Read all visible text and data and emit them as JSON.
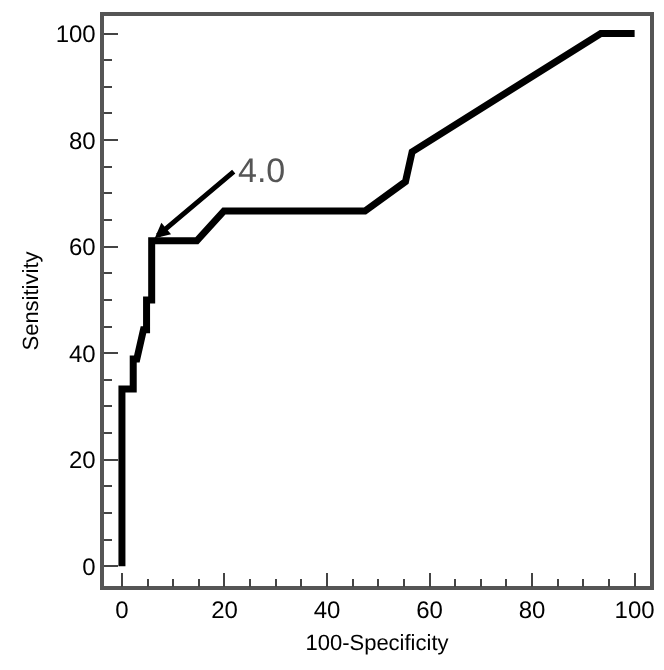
{
  "chart_data": {
    "type": "line",
    "xlabel": "100-Specificity",
    "ylabel": "Sensitivity",
    "x": [
      0,
      0,
      2.2,
      2.2,
      2.9,
      4.2,
      4.8,
      4.8,
      5.8,
      5.8,
      14.6,
      19.9,
      47.4,
      55.3,
      56.6,
      93.4,
      100
    ],
    "series": [
      {
        "color": "#000000",
        "values": [
          0,
          33.3,
          33.3,
          38.9,
          38.9,
          44.4,
          44.4,
          50,
          50,
          61.1,
          61.1,
          66.7,
          66.7,
          72.2,
          77.8,
          100,
          100
        ]
      }
    ],
    "annotations": [
      {
        "text": "4.0",
        "x": 5.8,
        "y": 61.1
      }
    ],
    "xlim": [
      -3.5,
      103
    ],
    "ylim": [
      -3.7,
      103.3
    ],
    "xticks": [
      0,
      {
        "value": 5,
        "label": null
      },
      {
        "value": 10,
        "label": null
      },
      {
        "value": 15,
        "label": null
      },
      20,
      {
        "value": 25,
        "label": null
      },
      {
        "value": 30,
        "label": null
      },
      {
        "value": 35,
        "label": null
      },
      40,
      {
        "value": 45,
        "label": null
      },
      {
        "value": 50,
        "label": null
      },
      {
        "value": 55,
        "label": null
      },
      60,
      {
        "value": 65,
        "label": null
      },
      {
        "value": 70,
        "label": null
      },
      {
        "value": 75,
        "label": null
      },
      80,
      {
        "value": 85,
        "label": null
      },
      {
        "value": 90,
        "label": null
      },
      {
        "value": 95,
        "label": null
      },
      100
    ],
    "yticks": [
      0,
      {
        "value": 5,
        "label": null
      },
      {
        "value": 10,
        "label": null
      },
      {
        "value": 15,
        "label": null
      },
      20,
      {
        "value": 25,
        "label": null
      },
      {
        "value": 30,
        "label": null
      },
      {
        "value": 35,
        "label": null
      },
      40,
      {
        "value": 45,
        "label": null
      },
      {
        "value": 50,
        "label": null
      },
      {
        "value": 55,
        "label": null
      },
      60,
      {
        "value": 65,
        "label": null
      },
      {
        "value": 70,
        "label": null
      },
      {
        "value": 75,
        "label": null
      },
      80,
      {
        "value": 85,
        "label": null
      },
      {
        "value": 90,
        "label": null
      },
      {
        "value": 95,
        "label": null
      },
      100
    ],
    "marker": "none",
    "line_style": "solid"
  }
}
